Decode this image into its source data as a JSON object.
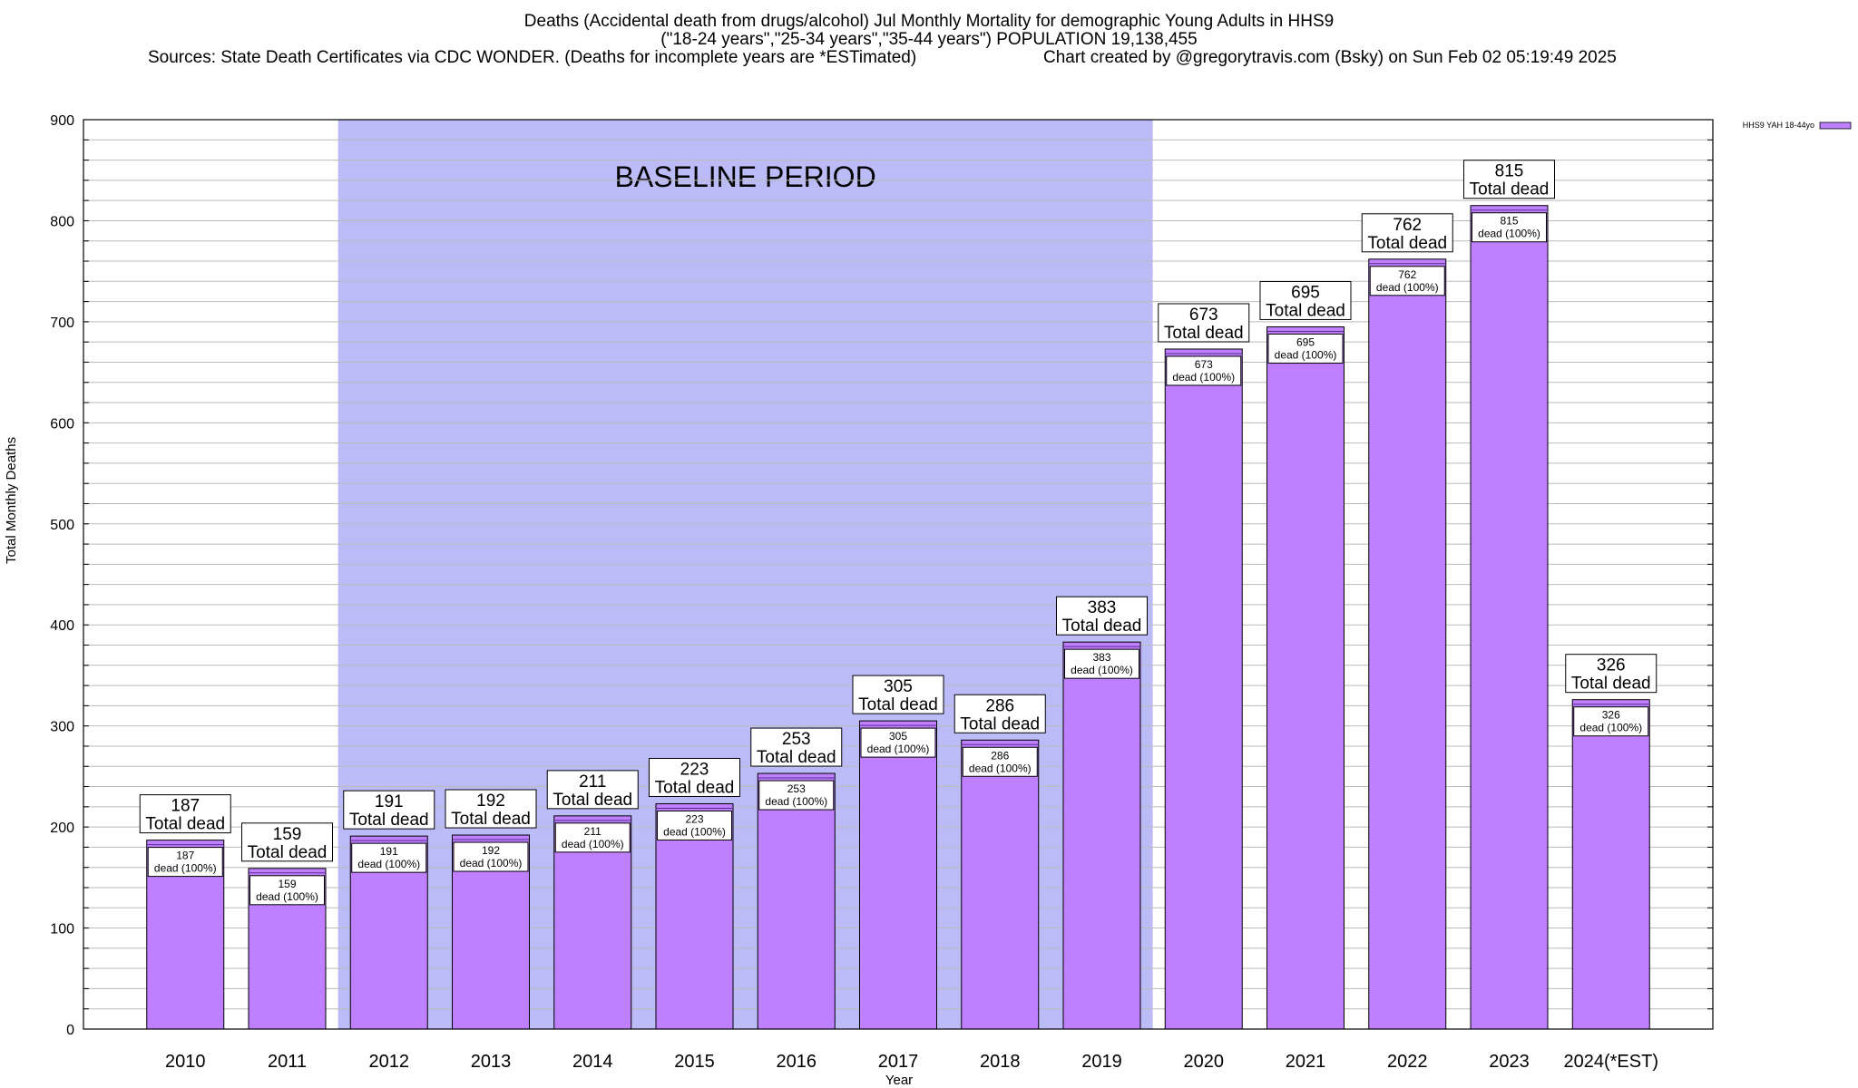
{
  "header": {
    "line1": "Deaths (Accidental death from drugs/alcohol) Jul Monthly Mortality for demographic Young Adults in HHS9",
    "line2": "(\"18-24 years\",\"25-34 years\",\"35-44 years\") POPULATION 19,138,455",
    "line3_left": "Sources: State Death Certificates via CDC WONDER. (Deaths for incomplete years are *ESTimated)",
    "line3_right": "Chart created by @gregorytravis.com (Bsky) on Sun Feb 02 05:19:49 2025"
  },
  "chart_data": {
    "type": "bar",
    "categories": [
      "2010",
      "2011",
      "2012",
      "2013",
      "2014",
      "2015",
      "2016",
      "2017",
      "2018",
      "2019",
      "2020",
      "2021",
      "2022",
      "2023",
      "2024(*EST)"
    ],
    "series": [
      {
        "name": "HHS9 YAH 18-44yo",
        "values": [
          187,
          159,
          191,
          192,
          211,
          223,
          253,
          305,
          286,
          383,
          673,
          695,
          762,
          815,
          326
        ]
      }
    ],
    "xlabel": "Year",
    "ylabel": "Total Monthly Deaths",
    "ylim": [
      0,
      900
    ],
    "yticks": [
      0,
      100,
      200,
      300,
      400,
      500,
      600,
      700,
      800,
      900
    ],
    "grid": true,
    "legend": "top-right",
    "colors": {
      "bar": "#bf80ff",
      "baseline": "#bbbbf8",
      "grid": "#bbbbbb"
    },
    "baseline_region": {
      "label": "BASELINE PERIOD",
      "from": "2012",
      "to": "2019"
    },
    "top_label_suffix": "Total dead",
    "inner_label_suffix": "dead (100%)"
  }
}
